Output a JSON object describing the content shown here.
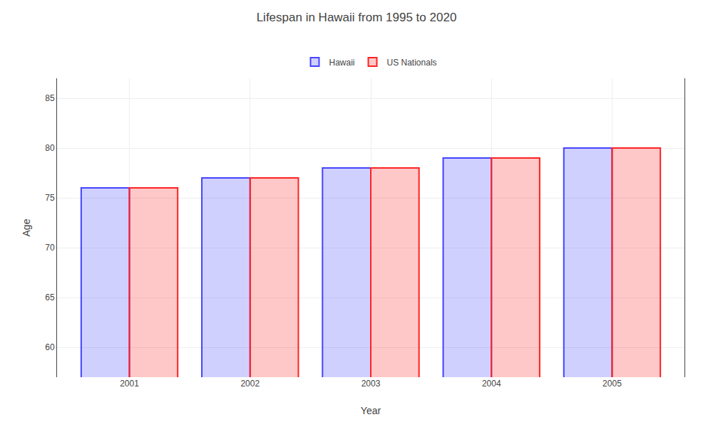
{
  "chart_data": {
    "type": "bar",
    "title": "Lifespan in Hawaii from 1995 to 2020",
    "xlabel": "Year",
    "ylabel": "Age",
    "categories": [
      "2001",
      "2002",
      "2003",
      "2004",
      "2005"
    ],
    "series": [
      {
        "name": "Hawaii",
        "color": "#4444ff",
        "values": [
          76,
          77,
          78,
          79,
          80
        ]
      },
      {
        "name": "US Nationals",
        "color": "#ff2222",
        "values": [
          76,
          77,
          78,
          79,
          80
        ]
      }
    ],
    "ylim": [
      57,
      87
    ],
    "yticks": [
      60,
      65,
      70,
      75,
      80,
      85
    ],
    "grid": true,
    "legend": "top"
  }
}
